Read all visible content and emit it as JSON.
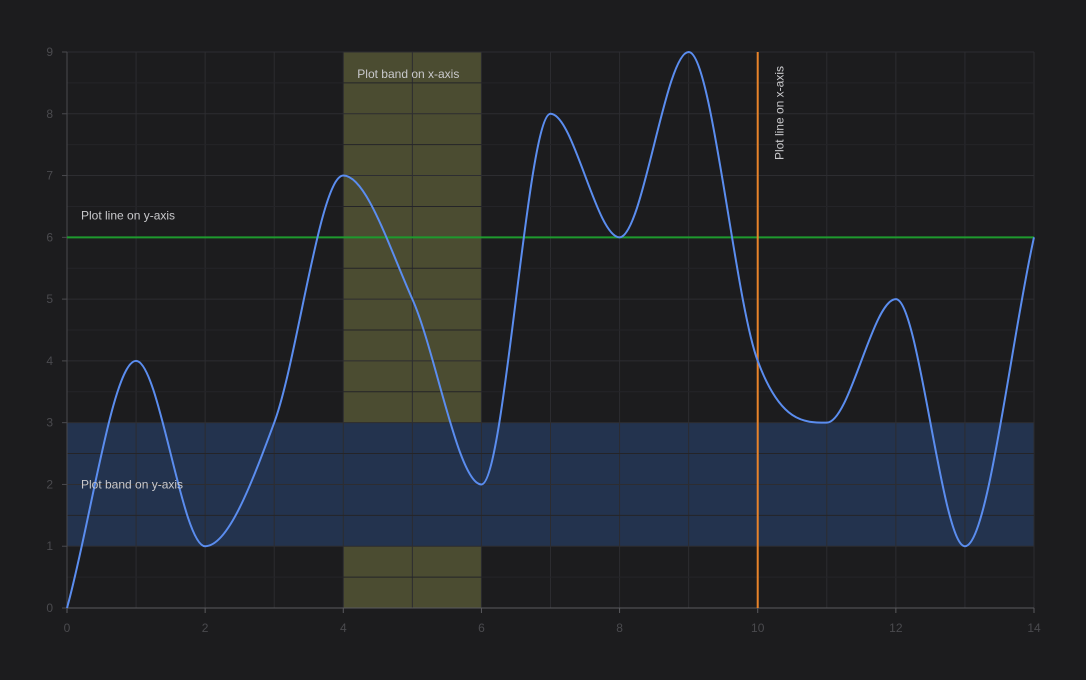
{
  "chart_data": {
    "type": "line",
    "title": "",
    "xlabel": "",
    "ylabel": "",
    "xlim": [
      0,
      14
    ],
    "ylim": [
      0,
      9
    ],
    "x_ticks": [
      0,
      2,
      4,
      6,
      8,
      10,
      12,
      14
    ],
    "y_ticks": [
      0,
      1,
      2,
      3,
      4,
      5,
      6,
      7,
      8,
      9
    ],
    "grid": true,
    "curve": "smooth",
    "series": [
      {
        "color": "#5b8def",
        "x": [
          0,
          1,
          2,
          3,
          4,
          5,
          6,
          7,
          8,
          9,
          10,
          11,
          12,
          13,
          14
        ],
        "y": [
          0,
          4,
          1,
          3,
          7,
          5,
          2,
          8,
          6,
          9,
          4,
          3,
          5,
          1,
          6
        ]
      }
    ],
    "plot_bands": [
      {
        "axis": "x",
        "from": 4,
        "to": 6,
        "label": "Plot band on x-axis",
        "color": "#4b4c31"
      },
      {
        "axis": "y",
        "from": 1,
        "to": 3,
        "label": "Plot band on y-axis",
        "color": "#23334e"
      }
    ],
    "plot_lines": [
      {
        "axis": "y",
        "value": 6,
        "label": "Plot line on y-axis",
        "color": "#1e9a2e"
      },
      {
        "axis": "x",
        "value": 10,
        "label": "Plot line on x-axis",
        "color": "#e8832a"
      }
    ]
  }
}
